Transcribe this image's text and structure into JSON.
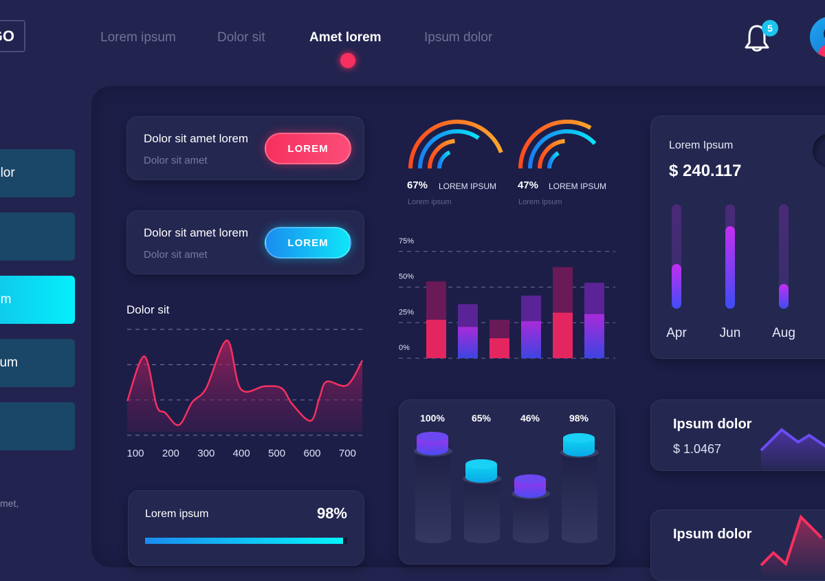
{
  "header": {
    "logo": "GO",
    "nav": [
      "Lorem ipsum",
      "Dolor sit",
      "Amet lorem",
      "Ipsum dolor"
    ],
    "active_nav": 2,
    "notifications": "5"
  },
  "sidebar": {
    "items": [
      "olor",
      "",
      "em",
      "sum",
      ""
    ],
    "active": 2,
    "footer": "met,"
  },
  "action_cards": [
    {
      "title": "Dolor sit amet lorem",
      "subtitle": "Dolor sit amet",
      "button": "LOREM",
      "color": "#f7305f"
    },
    {
      "title": "Dolor sit amet lorem",
      "subtitle": "Dolor sit amet",
      "button": "LOREM",
      "color": "#16b0f0"
    }
  ],
  "line_chart": {
    "title": "Dolor sit",
    "x_ticks": [
      "100",
      "200",
      "300",
      "400",
      "500",
      "600",
      "700"
    ]
  },
  "progress": {
    "label": "Lorem ipsum",
    "value_text": "98%",
    "value": 98
  },
  "gauges": [
    {
      "value": "67%",
      "label": "LOREM IPSUM",
      "sub": "Lorem ipsum"
    },
    {
      "value": "47%",
      "label": "LOREM IPSUM",
      "sub": "Lorem ipsum"
    }
  ],
  "bar_chart": {
    "y_ticks": [
      "0%",
      "25%",
      "50%",
      "75%"
    ]
  },
  "cylinders": [
    {
      "label": "100%",
      "value": 100,
      "color": "purple"
    },
    {
      "label": "65%",
      "value": 65,
      "color": "cyan"
    },
    {
      "label": "46%",
      "value": 46,
      "color": "purple"
    },
    {
      "label": "98%",
      "value": 98,
      "color": "cyan"
    }
  ],
  "revenue": {
    "title": "Lorem Ipsum",
    "amount": "$ 240.117",
    "months": [
      "Apr",
      "Jun",
      "Aug"
    ],
    "levels": [
      43,
      79,
      24
    ]
  },
  "mini_cards": [
    {
      "title": "Ipsum dolor",
      "value": "$ 1.0467"
    },
    {
      "title": "Ipsum dolor"
    }
  ],
  "chart_data": [
    {
      "type": "area",
      "x_ticks": [
        100,
        200,
        300,
        400,
        500,
        600,
        700
      ],
      "ylim": [
        0,
        3
      ],
      "grid": true,
      "x": [
        77,
        125,
        160,
        184,
        223,
        261,
        300,
        359,
        398,
        466,
        514,
        544,
        596,
        621,
        641,
        699,
        742
      ],
      "y": [
        0.97,
        2.24,
        0.84,
        0.64,
        0.29,
        0.94,
        1.33,
        2.69,
        1.31,
        1.39,
        1.33,
        0.88,
        0.41,
        1.07,
        1.52,
        1.42,
        2.12
      ]
    },
    {
      "type": "bar",
      "stacked": true,
      "ylim": [
        0,
        75
      ],
      "y_ticks": [
        "0%",
        "25%",
        "50%",
        "75%"
      ],
      "grid": true,
      "totals": [
        54,
        38,
        27,
        44,
        64,
        53
      ],
      "lower": [
        27,
        22,
        14,
        26,
        32,
        31
      ],
      "colors": [
        "pink",
        "purple",
        "pink",
        "purple",
        "pink",
        "purple"
      ]
    }
  ]
}
